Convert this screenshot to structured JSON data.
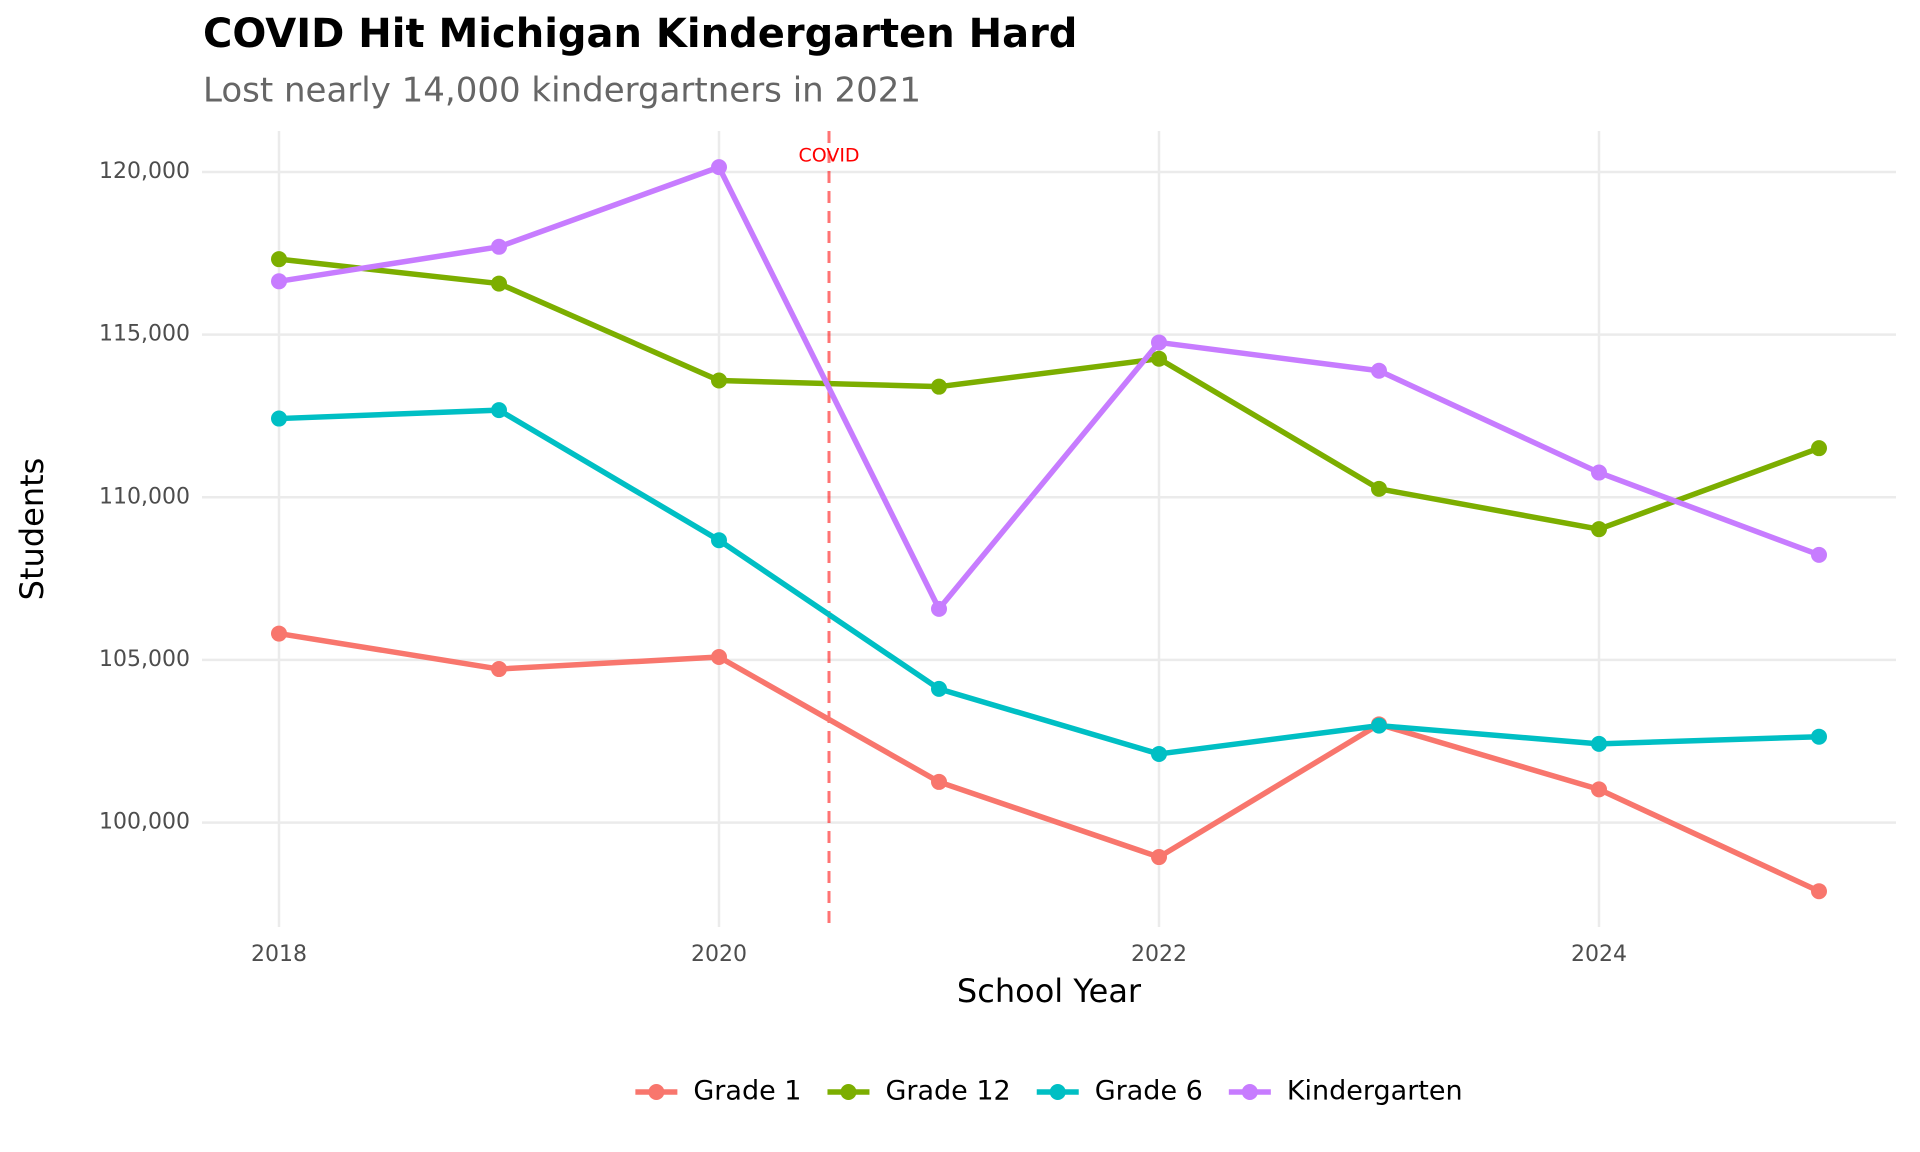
{
  "chart_data": {
    "type": "line",
    "title": "COVID Hit Michigan Kindergarten Hard",
    "subtitle": "Lost nearly 14,000 kindergartners in 2021",
    "x_label": "School Year",
    "y_label": "Students",
    "x": [
      2018,
      2019,
      2020,
      2021,
      2022,
      2023,
      2024,
      2025
    ],
    "series": [
      {
        "name": "Grade 1",
        "color": "#F8766D",
        "values": [
          105810,
          104720,
          105090,
          101250,
          98940,
          103020,
          101020,
          97890
        ]
      },
      {
        "name": "Grade 12",
        "color": "#7CAE00",
        "values": [
          117320,
          116570,
          113590,
          113400,
          114260,
          110260,
          109020,
          111510
        ]
      },
      {
        "name": "Grade 6",
        "color": "#00BFC4",
        "values": [
          112420,
          112680,
          108680,
          104110,
          102110,
          102980,
          102420,
          102640
        ]
      },
      {
        "name": "Kindergarten",
        "color": "#C77CFF",
        "values": [
          116640,
          117700,
          120150,
          106570,
          114760,
          113890,
          110760,
          108230
        ]
      }
    ],
    "xlim": [
      2017.65,
      2025.35
    ],
    "xticks": [
      2018,
      2020,
      2022,
      2024
    ],
    "ylim": [
      96790,
      121260
    ],
    "yticks": [
      {
        "value": 100000,
        "label": "100,000"
      },
      {
        "value": 105000,
        "label": "105,000"
      },
      {
        "value": 110000,
        "label": "110,000"
      },
      {
        "value": 115000,
        "label": "115,000"
      },
      {
        "value": 120000,
        "label": "120,000"
      }
    ],
    "annotations": [
      {
        "text": "COVID",
        "x": 2020.5,
        "color": "red"
      }
    ],
    "grid": true,
    "legend": "bottom"
  }
}
